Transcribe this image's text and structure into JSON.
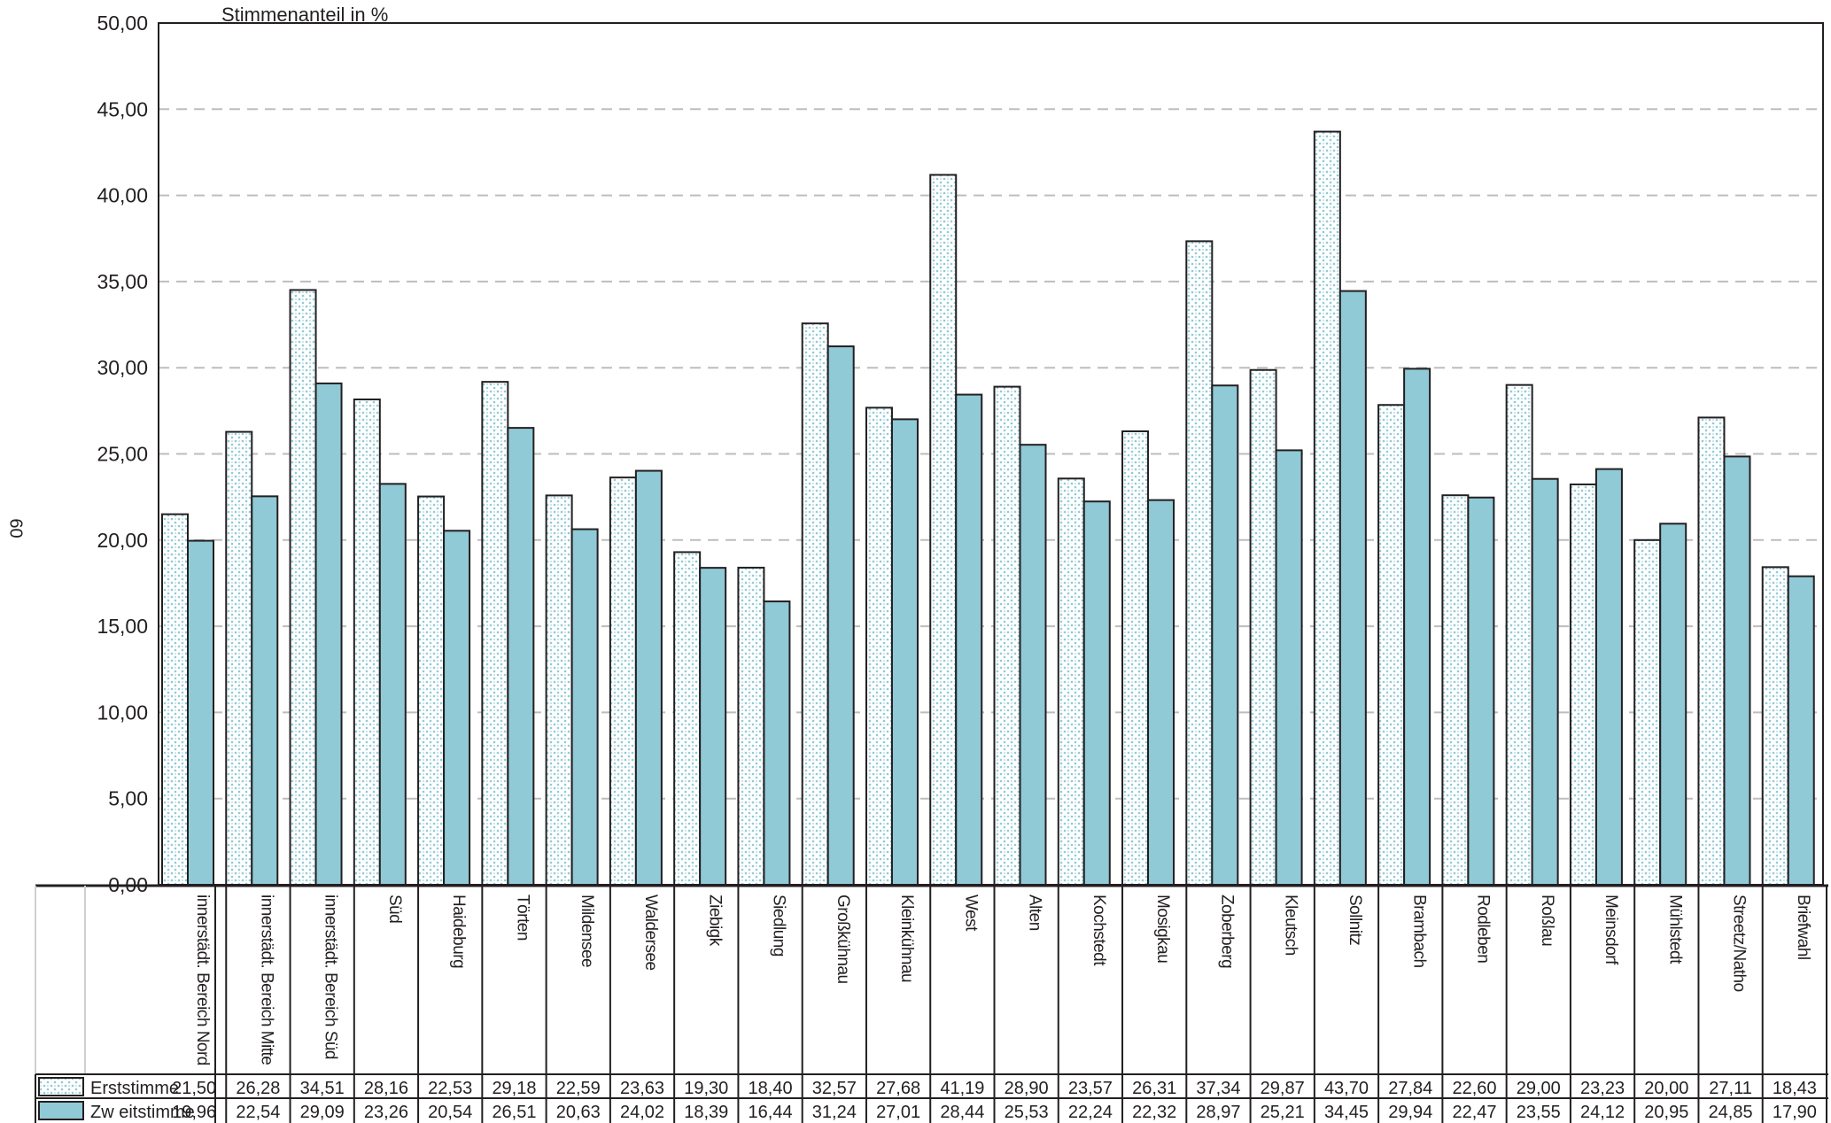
{
  "page_number": "60",
  "chart_data": {
    "type": "bar",
    "title": "",
    "ylabel": "Stimmenanteil in %",
    "xlabel": "",
    "ylim": [
      0,
      50
    ],
    "yticks": [
      "0,00",
      "5,00",
      "10,00",
      "15,00",
      "20,00",
      "25,00",
      "30,00",
      "35,00",
      "40,00",
      "45,00",
      "50,00"
    ],
    "grid": "horizontal-dashed",
    "legend": "table-bottom-left",
    "categories": [
      "innerstädt. Bereich Nord",
      "innerstädt. Bereich Mitte",
      "innerstädt. Bereich Süd",
      "Süd",
      "Haideburg",
      "Törten",
      "Mildensee",
      "Waldersee",
      "Ziebigk",
      "Siedlung",
      "Großkühnau",
      "Kleinkühnau",
      "West",
      "Alten",
      "Kochstedt",
      "Mosigkau",
      "Zoberberg",
      "Kleutsch",
      "Sollnitz",
      "Brambach",
      "Rodleben",
      "Roßlau",
      "Meinsdorf",
      "Mühlstedt",
      "Streetz/Natho",
      "Briefwahl"
    ],
    "series": [
      {
        "name": "Erststimme",
        "color": "#8fcad6",
        "pattern": "dots",
        "values": [
          21.5,
          26.28,
          34.51,
          28.16,
          22.53,
          29.18,
          22.59,
          23.63,
          19.3,
          18.4,
          32.57,
          27.68,
          41.19,
          28.9,
          23.57,
          26.31,
          37.34,
          29.87,
          43.7,
          27.84,
          22.6,
          29.0,
          23.23,
          20.0,
          27.11,
          18.43
        ],
        "labels": [
          "21,50",
          "26,28",
          "34,51",
          "28,16",
          "22,53",
          "29,18",
          "22,59",
          "23,63",
          "19,30",
          "18,40",
          "32,57",
          "27,68",
          "41,19",
          "28,90",
          "23,57",
          "26,31",
          "37,34",
          "29,87",
          "43,70",
          "27,84",
          "22,60",
          "29,00",
          "23,23",
          "20,00",
          "27,11",
          "18,43"
        ]
      },
      {
        "name": "Zw eitstimme",
        "color": "#8fcad6",
        "pattern": "solid",
        "values": [
          19.96,
          22.54,
          29.09,
          23.26,
          20.54,
          26.51,
          20.63,
          24.02,
          18.39,
          16.44,
          31.24,
          27.01,
          28.44,
          25.53,
          22.24,
          22.32,
          28.97,
          25.21,
          34.45,
          29.94,
          22.47,
          23.55,
          24.12,
          20.95,
          24.85,
          17.9
        ],
        "labels": [
          "19,96",
          "22,54",
          "29,09",
          "23,26",
          "20,54",
          "26,51",
          "20,63",
          "24,02",
          "18,39",
          "16,44",
          "31,24",
          "27,01",
          "28,44",
          "25,53",
          "22,24",
          "22,32",
          "28,97",
          "25,21",
          "34,45",
          "29,94",
          "22,47",
          "23,55",
          "24,12",
          "20,95",
          "24,85",
          "17,90"
        ]
      }
    ]
  }
}
